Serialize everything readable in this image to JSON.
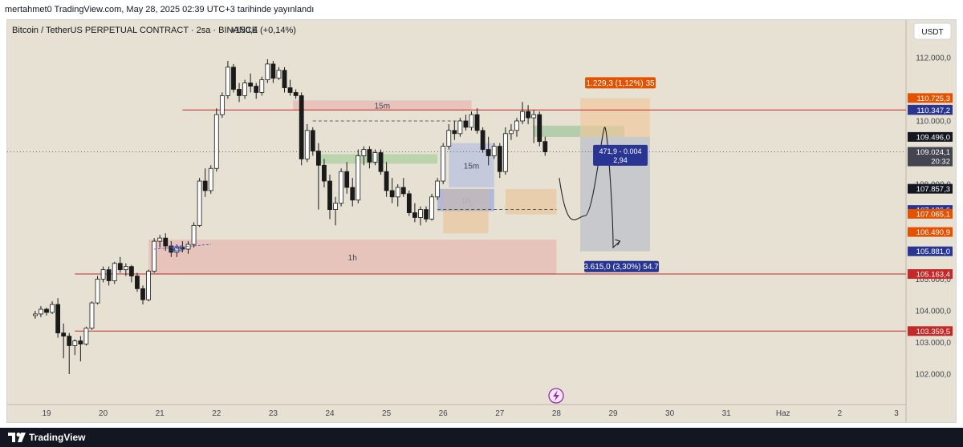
{
  "header": {
    "published": "mertahmet0 TradingView.com, May 28, 2025 02:39 UTC+3 tarihinde yayınlandı"
  },
  "chart_data": {
    "type": "candlestick",
    "title": "Bitcoin / TetherUS PERPETUAL CONTRACT · 2sa · BINANCE",
    "change_text": "+150,4 (+0,14%)",
    "currency_button": "USDT",
    "x_ticks": [
      "19",
      "20",
      "21",
      "22",
      "23",
      "24",
      "25",
      "26",
      "27",
      "28",
      "29",
      "30",
      "31",
      "Haz",
      "2",
      "3"
    ],
    "y_ticks": [
      {
        "value": 112000,
        "label": "112.000,0"
      },
      {
        "value": 110000,
        "label": "110.000,0"
      },
      {
        "value": 108000,
        "label": "108.000,0"
      },
      {
        "value": 105000,
        "label": "105.000,0"
      },
      {
        "value": 104000,
        "label": "104.000,0"
      },
      {
        "value": 103000,
        "label": "103.000,0"
      },
      {
        "value": 102000,
        "label": "102.000,0"
      }
    ],
    "price_labels": [
      {
        "value": 110725.3,
        "label": "110.725,3",
        "color": "#e65100"
      },
      {
        "value": 110357.6,
        "label": "110.357,6",
        "color": "#283593"
      },
      {
        "value": 110350.0,
        "label": "110.350,0",
        "color": "#c62828"
      },
      {
        "value": 110347.2,
        "label": "110.347,2",
        "color": "#283593"
      },
      {
        "value": 109496.0,
        "label": "109.496,0",
        "color": "#131722"
      },
      {
        "value": 109024.1,
        "label": "109.024,1",
        "color": "#434651",
        "sub": "20:32"
      },
      {
        "value": 107857.3,
        "label": "107.857,3",
        "color": "#131722"
      },
      {
        "value": 107186.6,
        "label": "107.186,6",
        "color": "#283593"
      },
      {
        "value": 107065.1,
        "label": "107.065,1",
        "color": "#e65100"
      },
      {
        "value": 106490.9,
        "label": "106.490,9",
        "color": "#e65100"
      },
      {
        "value": 105881.0,
        "label": "105.881,0",
        "color": "#283593"
      },
      {
        "value": 105163.4,
        "label": "105.163,4",
        "color": "#c62828"
      },
      {
        "value": 103359.5,
        "label": "103.359,5",
        "color": "#c62828"
      }
    ],
    "horizontal_lines": [
      110347.2,
      105163.4,
      103359.5
    ],
    "zones": [
      {
        "label": "15m",
        "x0": 23.35,
        "x1": 26.5,
        "top": 110650,
        "bottom": 110340,
        "color": "#e6b8b0"
      },
      {
        "label": "1h",
        "x0": 20.8,
        "x1": 28.0,
        "top": 106250,
        "bottom": 105150,
        "color": "#e6b8b0"
      },
      {
        "label": "15m",
        "x0": 26.1,
        "x1": 26.9,
        "top": 109300,
        "bottom": 107900,
        "color": "#b5bfdf"
      },
      {
        "label": "1h",
        "x0": 25.9,
        "x1": 26.9,
        "top": 107850,
        "bottom": 107150,
        "color": "#b5bfdf"
      }
    ],
    "position_box": {
      "x0": 28.42,
      "x1": 29.65,
      "entry": 109496.0,
      "target": 110725.3,
      "stop": 105881.0,
      "target_label": "1.229,3 (1,12%) 35",
      "stop_label": "3.615,0 (3,30%) 54.7",
      "center_label_1": "471,9 - 0.004",
      "center_label_2": "2,94"
    },
    "liquidity_text": "$$$",
    "candles": [
      [
        18.8,
        103850,
        104000,
        103750,
        103900
      ],
      [
        18.9,
        103900,
        104150,
        103800,
        104050
      ],
      [
        19.0,
        104050,
        104100,
        103850,
        103950
      ],
      [
        19.1,
        103950,
        104300,
        103900,
        104200
      ],
      [
        19.2,
        104200,
        104400,
        103150,
        103300
      ],
      [
        19.3,
        103300,
        103600,
        102500,
        103200
      ],
      [
        19.4,
        103200,
        103300,
        102000,
        102900
      ],
      [
        19.5,
        102900,
        103100,
        102600,
        103050
      ],
      [
        19.6,
        103050,
        103200,
        102400,
        102950
      ],
      [
        19.7,
        102950,
        103500,
        102900,
        103450
      ],
      [
        19.8,
        103450,
        104300,
        103400,
        104250
      ],
      [
        19.9,
        104250,
        105100,
        104200,
        105000
      ],
      [
        20.0,
        105000,
        105400,
        104900,
        105300
      ],
      [
        20.1,
        105300,
        105400,
        104800,
        104950
      ],
      [
        20.2,
        104950,
        105550,
        104850,
        105500
      ],
      [
        20.3,
        105500,
        105700,
        105200,
        105300
      ],
      [
        20.4,
        105300,
        105500,
        105100,
        105400
      ],
      [
        20.5,
        105400,
        105450,
        104900,
        105100
      ],
      [
        20.6,
        105100,
        105200,
        104600,
        104700
      ],
      [
        20.7,
        104700,
        104800,
        104200,
        104350
      ],
      [
        20.8,
        104350,
        105300,
        104300,
        105250
      ],
      [
        20.9,
        105250,
        106300,
        105200,
        106200
      ],
      [
        21.0,
        106200,
        106400,
        106000,
        106300
      ],
      [
        21.1,
        106300,
        106450,
        105900,
        106050
      ],
      [
        21.2,
        106050,
        106200,
        105700,
        105850
      ],
      [
        21.3,
        105850,
        106100,
        105700,
        106000
      ],
      [
        21.4,
        106000,
        106200,
        105850,
        105950
      ],
      [
        21.5,
        105950,
        106200,
        105800,
        106100
      ],
      [
        21.6,
        106100,
        106800,
        106000,
        106700
      ],
      [
        21.7,
        106700,
        108200,
        106650,
        108100
      ],
      [
        21.8,
        108100,
        108500,
        107600,
        107800
      ],
      [
        21.9,
        107800,
        108600,
        107700,
        108500
      ],
      [
        22.0,
        108500,
        110400,
        108400,
        110200
      ],
      [
        22.1,
        110200,
        110900,
        110100,
        110800
      ],
      [
        22.2,
        110800,
        111900,
        110700,
        111700
      ],
      [
        22.3,
        111700,
        111800,
        110900,
        111000
      ],
      [
        22.4,
        111000,
        111200,
        110600,
        110800
      ],
      [
        22.5,
        110800,
        111300,
        110700,
        111200
      ],
      [
        22.6,
        111200,
        111500,
        110900,
        111100
      ],
      [
        22.7,
        111100,
        111200,
        110700,
        110900
      ],
      [
        22.8,
        110900,
        111400,
        110800,
        111300
      ],
      [
        22.9,
        111300,
        111950,
        111200,
        111800
      ],
      [
        23.0,
        111800,
        111900,
        111200,
        111350
      ],
      [
        23.1,
        111350,
        111700,
        111300,
        111600
      ],
      [
        23.2,
        111600,
        111700,
        110900,
        111050
      ],
      [
        23.3,
        111050,
        111300,
        110800,
        110900
      ],
      [
        23.4,
        110900,
        111000,
        110700,
        110800
      ],
      [
        23.5,
        110800,
        110900,
        108600,
        108800
      ],
      [
        23.6,
        108800,
        109900,
        108700,
        109700
      ],
      [
        23.7,
        109700,
        109800,
        108900,
        109050
      ],
      [
        23.8,
        109050,
        109300,
        107200,
        108600
      ],
      [
        23.9,
        108600,
        108800,
        107900,
        108100
      ],
      [
        24.0,
        108100,
        108300,
        106900,
        107200
      ],
      [
        24.1,
        107200,
        107600,
        106700,
        107400
      ],
      [
        24.2,
        107400,
        108500,
        107300,
        108400
      ],
      [
        24.3,
        108400,
        108700,
        107700,
        107900
      ],
      [
        24.4,
        107900,
        108200,
        107300,
        107500
      ],
      [
        24.5,
        107500,
        109100,
        107400,
        108900
      ],
      [
        24.6,
        108900,
        109200,
        108600,
        109100
      ],
      [
        24.7,
        109100,
        109200,
        108500,
        108700
      ],
      [
        24.8,
        108700,
        109100,
        108600,
        109000
      ],
      [
        24.9,
        109000,
        109100,
        108300,
        108400
      ],
      [
        25.0,
        108400,
        108700,
        107600,
        107800
      ],
      [
        25.1,
        107800,
        108200,
        107400,
        107600
      ],
      [
        25.2,
        107600,
        108000,
        107300,
        107900
      ],
      [
        25.3,
        107900,
        108200,
        107600,
        107700
      ],
      [
        25.4,
        107700,
        107800,
        107000,
        107100
      ],
      [
        25.5,
        107100,
        107400,
        106800,
        106950
      ],
      [
        25.6,
        106950,
        107300,
        106700,
        107200
      ],
      [
        25.7,
        107200,
        107300,
        106800,
        106900
      ],
      [
        25.8,
        106900,
        107700,
        106850,
        107600
      ],
      [
        25.9,
        107600,
        108200,
        107500,
        108100
      ],
      [
        26.0,
        108100,
        109300,
        108000,
        109200
      ],
      [
        26.1,
        109200,
        109900,
        109100,
        109700
      ],
      [
        26.2,
        109700,
        110000,
        109400,
        109600
      ],
      [
        26.3,
        109600,
        110100,
        109500,
        110000
      ],
      [
        26.4,
        110000,
        110200,
        109700,
        109800
      ],
      [
        26.5,
        109800,
        110300,
        109700,
        110200
      ],
      [
        26.6,
        110200,
        110400,
        109600,
        109700
      ],
      [
        26.7,
        109700,
        109800,
        109000,
        109100
      ],
      [
        26.8,
        109100,
        109500,
        108600,
        108900
      ],
      [
        26.9,
        108900,
        109300,
        108800,
        109200
      ],
      [
        27.0,
        109200,
        109300,
        108200,
        108400
      ],
      [
        27.1,
        108400,
        109800,
        108300,
        109600
      ],
      [
        27.2,
        109600,
        109900,
        109400,
        109700
      ],
      [
        27.3,
        109700,
        110100,
        109500,
        110000
      ],
      [
        27.4,
        110000,
        110600,
        109900,
        110300
      ],
      [
        27.5,
        110300,
        110500,
        109900,
        110100
      ],
      [
        27.6,
        110100,
        110350,
        109300,
        110200
      ],
      [
        27.7,
        110200,
        110300,
        109200,
        109350
      ],
      [
        27.8,
        109350,
        109500,
        108900,
        109024
      ]
    ]
  }
}
